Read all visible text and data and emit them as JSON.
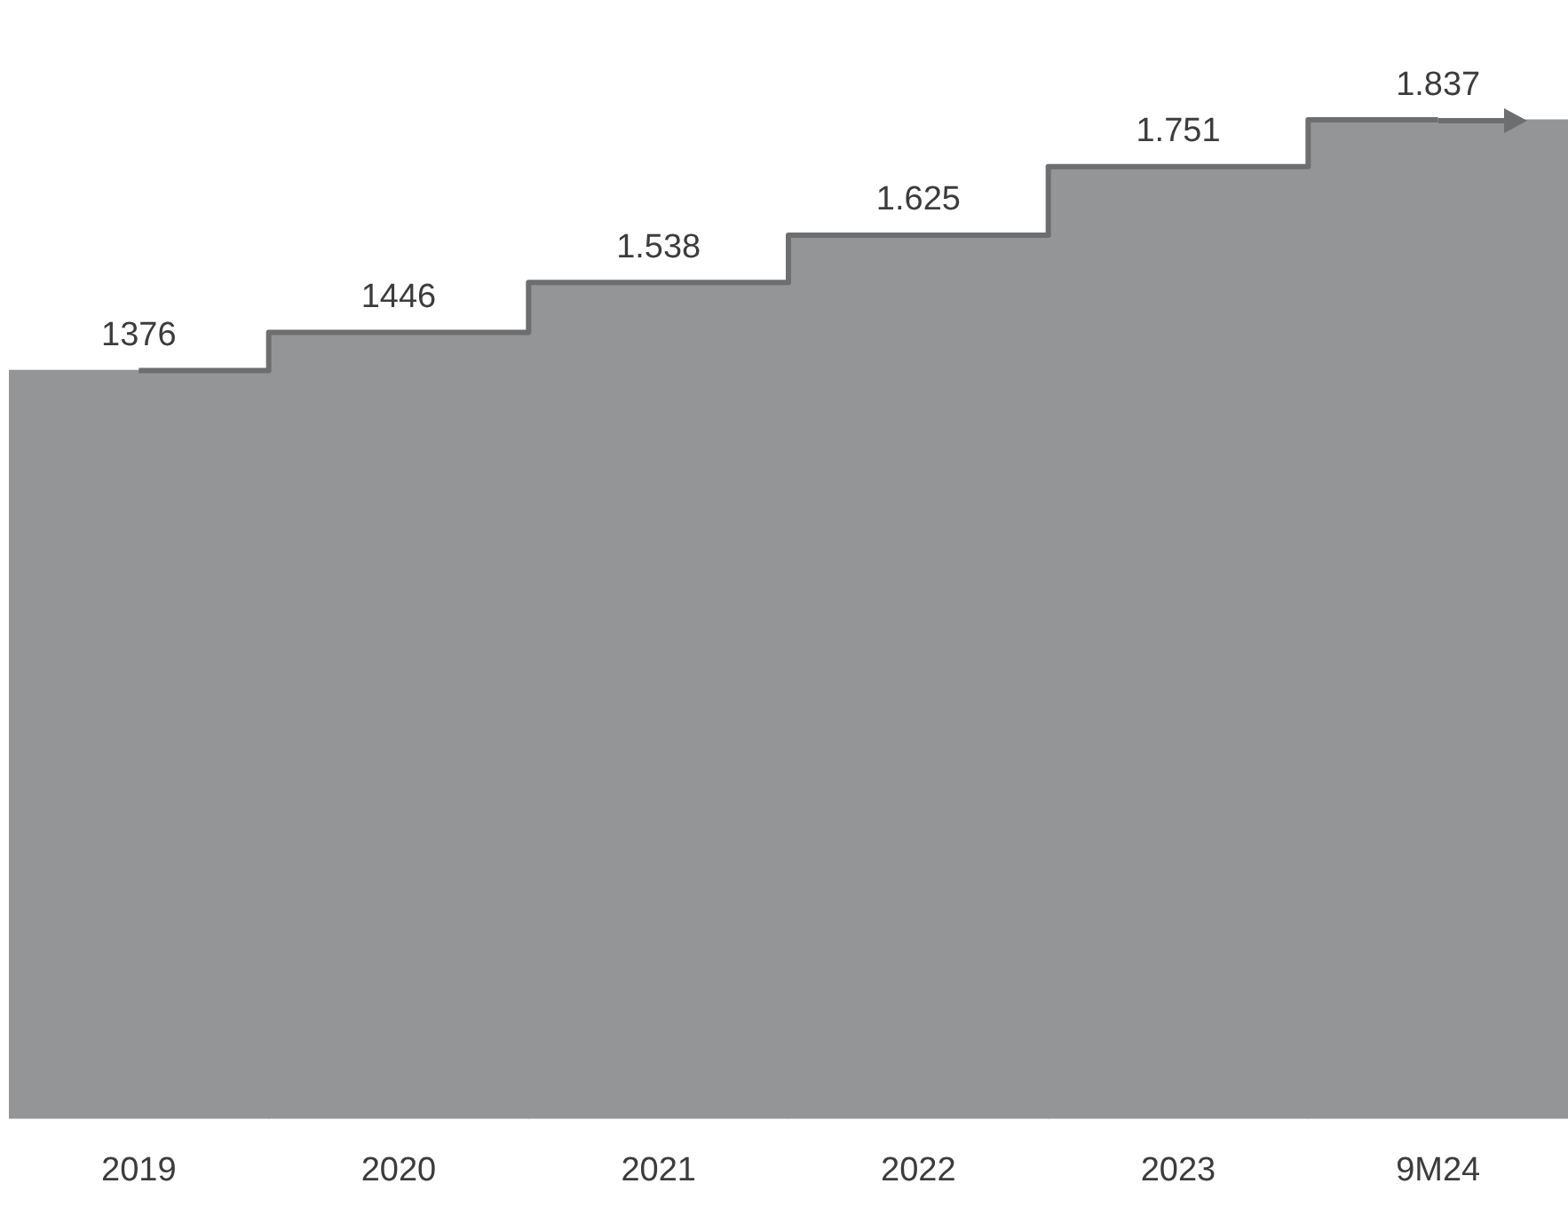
{
  "chart_data": {
    "type": "bar",
    "categories": [
      "2019",
      "2020",
      "2021",
      "2022",
      "2023",
      "9M24"
    ],
    "series": [
      {
        "color": "#939597",
        "values": [
          1376,
          1446,
          1538,
          1625,
          1751,
          1837
        ]
      },
      {
        "type": "step",
        "color": "#6d6e70",
        "values": [
          1376,
          1446,
          1538,
          1625,
          1751,
          1837
        ],
        "value_labels": [
          "1376",
          "1446",
          "1.538",
          "1.625",
          "1.751",
          "1.837"
        ]
      }
    ]
  }
}
